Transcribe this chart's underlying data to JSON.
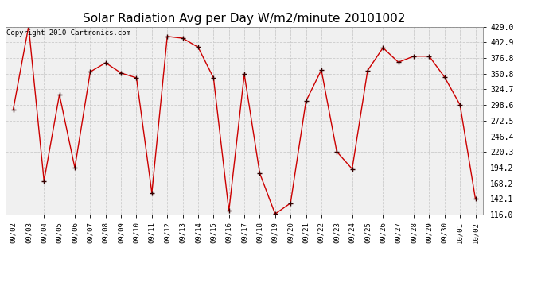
{
  "title": "Solar Radiation Avg per Day W/m2/minute 20101002",
  "copyright": "Copyright 2010 Cartronics.com",
  "labels": [
    "09/02",
    "09/03",
    "09/04",
    "09/05",
    "09/06",
    "09/07",
    "09/08",
    "09/09",
    "09/10",
    "09/11",
    "09/12",
    "09/13",
    "09/14",
    "09/15",
    "09/16",
    "09/17",
    "09/18",
    "09/19",
    "09/20",
    "09/21",
    "09/22",
    "09/23",
    "09/24",
    "09/25",
    "09/26",
    "09/27",
    "09/28",
    "09/29",
    "09/30",
    "10/01",
    "10/02"
  ],
  "values": [
    291,
    430,
    172,
    316,
    194,
    354,
    369,
    352,
    344,
    152,
    413,
    410,
    395,
    344,
    122,
    350,
    185,
    117,
    135,
    305,
    357,
    221,
    192,
    356,
    394,
    370,
    380,
    380,
    345,
    299,
    142
  ],
  "line_color": "#cc0000",
  "marker_color": "#cc0000",
  "bg_color": "#ffffff",
  "plot_bg_color": "#f0f0f0",
  "grid_color": "#cccccc",
  "ylim_min": 116.0,
  "ylim_max": 429.0,
  "yticks": [
    116.0,
    142.1,
    168.2,
    194.2,
    220.3,
    246.4,
    272.5,
    298.6,
    324.7,
    350.8,
    376.8,
    402.9,
    429.0
  ],
  "title_fontsize": 11,
  "copyright_fontsize": 6.5,
  "tick_fontsize": 6.5,
  "ytick_fontsize": 7
}
